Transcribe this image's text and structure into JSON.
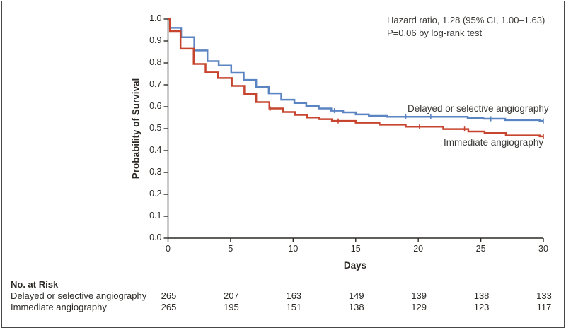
{
  "colors": {
    "delayed_series": "#5b84c3",
    "immediate_series": "#c7452f",
    "axis": "#2d2a26",
    "border": "#474747",
    "text": "#3a3835"
  },
  "annotation": {
    "line1": "Hazard ratio, 1.28 (95% CI, 1.00–1.63)",
    "line2": "P=0.06 by log-rank test"
  },
  "chart_data": {
    "type": "line",
    "subtype": "kaplan-meier-step",
    "title": "",
    "xlabel": "Days",
    "ylabel": "Probability of Survival",
    "xlim": [
      0,
      30
    ],
    "ylim": [
      0.0,
      1.0
    ],
    "grid": false,
    "legend_position": "inline-right-of-curves",
    "x_ticks": [
      0,
      5,
      10,
      15,
      20,
      25,
      30
    ],
    "y_ticks": [
      "0.0",
      "0.1",
      "0.2",
      "0.3",
      "0.4",
      "0.5",
      "0.6",
      "0.7",
      "0.8",
      "0.9",
      "1.0"
    ],
    "annotation": [
      "Hazard ratio, 1.28 (95% CI, 1.00–1.63)",
      "P=0.06 by log-rank test"
    ],
    "series": [
      {
        "name": "Delayed or selective angiography",
        "color": "#5b84c3",
        "start": [
          0,
          1.0
        ],
        "end_day": 30,
        "steps": [
          [
            0.15,
            0.96
          ],
          [
            1.05,
            0.917
          ],
          [
            2.1,
            0.857
          ],
          [
            3.15,
            0.808
          ],
          [
            4.05,
            0.788
          ],
          [
            5.05,
            0.755
          ],
          [
            6.05,
            0.722
          ],
          [
            7.05,
            0.69
          ],
          [
            8.05,
            0.661
          ],
          [
            9.05,
            0.632
          ],
          [
            10.1,
            0.617
          ],
          [
            11.05,
            0.604
          ],
          [
            12.05,
            0.592
          ],
          [
            13.05,
            0.582
          ],
          [
            14.0,
            0.574
          ],
          [
            15.0,
            0.565
          ],
          [
            16.05,
            0.558
          ],
          [
            17.5,
            0.554
          ],
          [
            23.95,
            0.549
          ],
          [
            25.2,
            0.545
          ],
          [
            26.95,
            0.539
          ],
          [
            29.7,
            0.535
          ]
        ],
        "censor_days": [
          13.3,
          19.0,
          21.0,
          25.8,
          30
        ]
      },
      {
        "name": "Immediate angiography",
        "color": "#c7452f",
        "start": [
          0,
          1.0
        ],
        "end_day": 30,
        "steps": [
          [
            0.15,
            0.945
          ],
          [
            1.0,
            0.865
          ],
          [
            2.05,
            0.795
          ],
          [
            3.0,
            0.757
          ],
          [
            4.0,
            0.731
          ],
          [
            5.1,
            0.695
          ],
          [
            6.1,
            0.658
          ],
          [
            7.05,
            0.621
          ],
          [
            8.1,
            0.592
          ],
          [
            9.2,
            0.576
          ],
          [
            10.15,
            0.563
          ],
          [
            11.1,
            0.551
          ],
          [
            12.1,
            0.543
          ],
          [
            13.1,
            0.535
          ],
          [
            15.0,
            0.527
          ],
          [
            16.9,
            0.518
          ],
          [
            19.0,
            0.509
          ],
          [
            22.0,
            0.498
          ],
          [
            24.0,
            0.487
          ],
          [
            25.3,
            0.48
          ],
          [
            27.0,
            0.469
          ],
          [
            29.7,
            0.465
          ]
        ],
        "censor_days": [
          8.15,
          13.6,
          20.1,
          23.7,
          30
        ]
      }
    ]
  },
  "risk_table": {
    "header": "No. at Risk",
    "days": [
      0,
      5,
      10,
      15,
      20,
      25,
      30
    ],
    "rows": [
      {
        "label": "Delayed or selective angiography",
        "values": [
          "265",
          "207",
          "163",
          "149",
          "139",
          "138",
          "133"
        ]
      },
      {
        "label": "Immediate angiography",
        "values": [
          "265",
          "195",
          "151",
          "138",
          "129",
          "123",
          "117"
        ]
      }
    ]
  }
}
